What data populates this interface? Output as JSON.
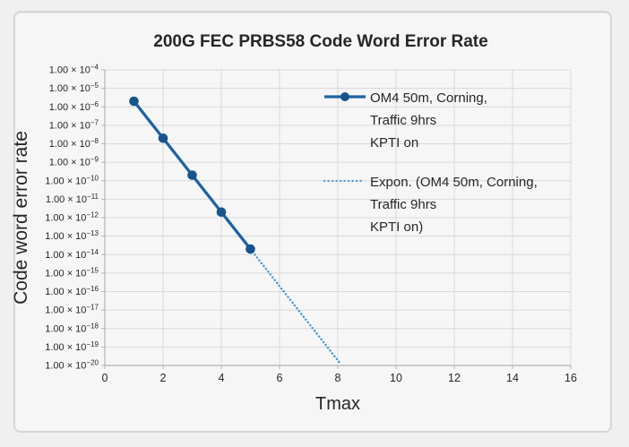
{
  "chart_data": {
    "type": "line",
    "title": "200G FEC PRBS58 Code Word Error Rate",
    "xlabel": "Tmax",
    "ylabel": "Code word error rate",
    "x_ticks": [
      0,
      2,
      4,
      6,
      8,
      10,
      12,
      14,
      16
    ],
    "xlim": [
      0,
      16
    ],
    "y_scale": "log",
    "y_tick_prefix": "1.00 × 10",
    "y_tick_exponents": [
      -4,
      -5,
      -6,
      -7,
      -8,
      -9,
      -10,
      -11,
      -12,
      -13,
      -14,
      -15,
      -16,
      -17,
      -18,
      -19,
      -20
    ],
    "ylim": [
      1e-20,
      0.0001
    ],
    "grid": true,
    "legend_position": "inside-top-right",
    "series": [
      {
        "name": "OM4 50m, Corning, Traffic 9hrs KPTI on",
        "legend_lines": [
          "OM4 50m, Corning,",
          "Traffic 9hrs",
          "KPTI on"
        ],
        "style": "solid-with-markers",
        "color": "#1e62a3",
        "marker_color": "#17548c",
        "x": [
          1,
          2,
          3,
          4,
          5
        ],
        "values": [
          2e-06,
          2e-08,
          2e-10,
          2e-12,
          2e-14
        ]
      }
    ],
    "trendline": {
      "name": "Expon. (OM4 50m, Corning, Traffic 9hrs KPTI on)",
      "legend_lines": [
        "Expon. (OM4 50m, Corning,",
        "Traffic 9hrs",
        "KPTI on)"
      ],
      "style": "dotted",
      "color": "#4196d2",
      "start": {
        "x": 5,
        "value": 2e-14
      },
      "end": {
        "x": 8.05,
        "value": 1.5e-20
      }
    },
    "colors": {
      "gridline": "#d9d9d9",
      "axis": "#b4b4b4",
      "text": "#3a3a3a",
      "title": "#1a1a1a"
    }
  }
}
